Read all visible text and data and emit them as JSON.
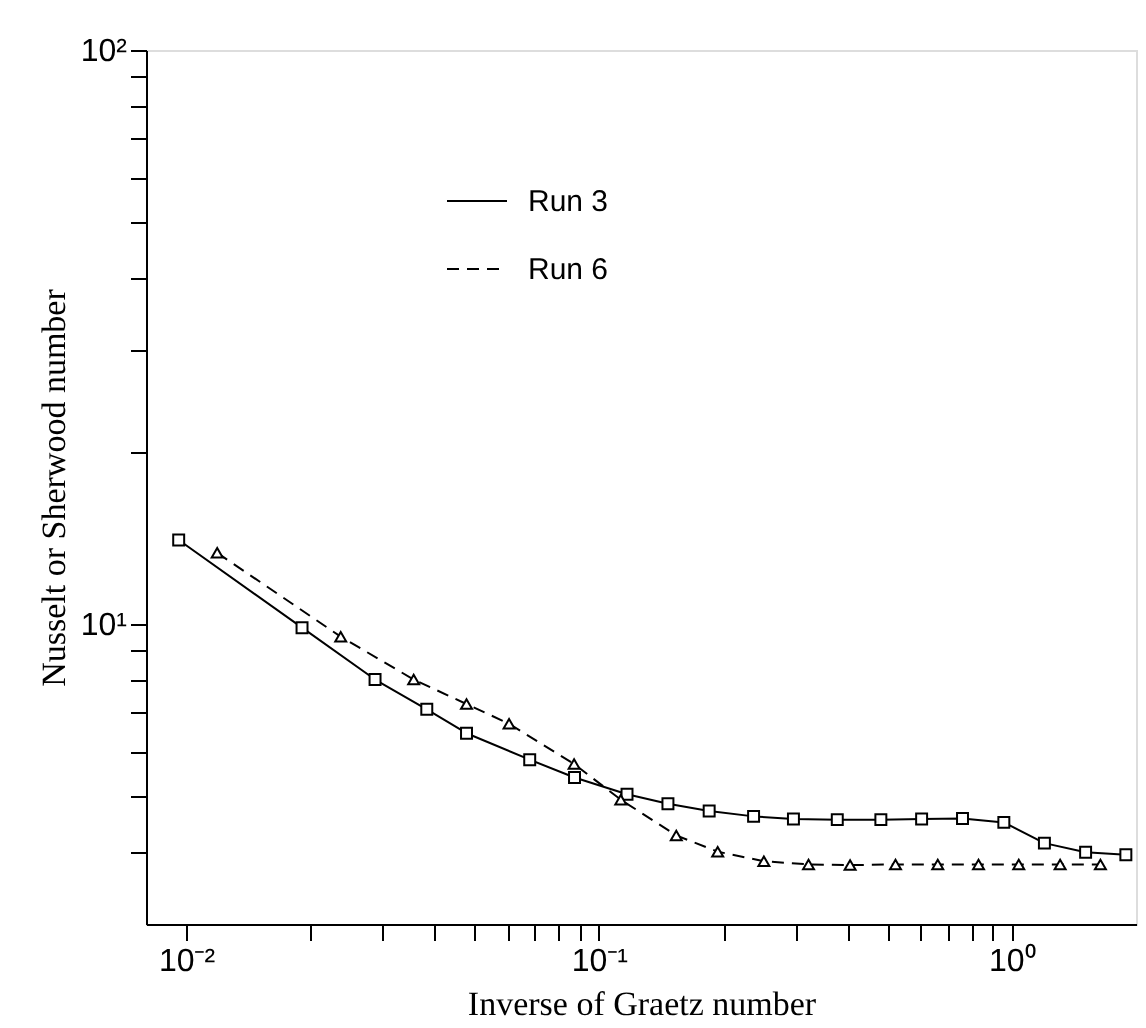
{
  "chart_data": {
    "type": "line",
    "xlabel": "Inverse of Graetz number",
    "ylabel": "Nusselt or Sherwood number",
    "log": "xy",
    "grid": false,
    "legend": "top",
    "xlim": [
      0.008,
      2
    ],
    "ylim": [
      3,
      100
    ],
    "xticks": [
      {
        "value": 0.01,
        "label": "10⁻²"
      },
      {
        "value": 0.02,
        "label": null
      },
      {
        "value": 0.03,
        "label": null
      },
      {
        "value": 0.04,
        "label": null
      },
      {
        "value": 0.05,
        "label": null
      },
      {
        "value": 0.06,
        "label": null
      },
      {
        "value": 0.07,
        "label": null
      },
      {
        "value": 0.08,
        "label": null
      },
      {
        "value": 0.09,
        "label": null
      },
      {
        "value": 0.1,
        "label": "10⁻¹"
      },
      {
        "value": 0.2,
        "label": null
      },
      {
        "value": 0.3,
        "label": null
      },
      {
        "value": 0.4,
        "label": null
      },
      {
        "value": 0.5,
        "label": null
      },
      {
        "value": 0.6,
        "label": null
      },
      {
        "value": 0.7,
        "label": null
      },
      {
        "value": 0.8,
        "label": null
      },
      {
        "value": 0.9,
        "label": null
      },
      {
        "value": 1,
        "label": "10⁰"
      }
    ],
    "yticks": [
      {
        "value": 4,
        "label": null
      },
      {
        "value": 5,
        "label": null
      },
      {
        "value": 6,
        "label": null
      },
      {
        "value": 7,
        "label": null
      },
      {
        "value": 8,
        "label": null
      },
      {
        "value": 9,
        "label": null
      },
      {
        "value": 10,
        "label": "10¹"
      },
      {
        "value": 20,
        "label": null
      },
      {
        "value": 30,
        "label": null
      },
      {
        "value": 40,
        "label": null
      },
      {
        "value": 50,
        "label": null
      },
      {
        "value": 60,
        "label": null
      },
      {
        "value": 70,
        "label": null
      },
      {
        "value": 80,
        "label": null
      },
      {
        "value": 90,
        "label": null
      },
      {
        "value": 100,
        "label": "10²"
      }
    ],
    "series": [
      {
        "name": "Run 3",
        "color": "#000000",
        "marker": "square",
        "line_style": "solid",
        "x": [
          0.0096,
          0.0191,
          0.0287,
          0.0383,
          0.0478,
          0.068,
          0.0873,
          0.117,
          0.147,
          0.185,
          0.237,
          0.296,
          0.378,
          0.482,
          0.605,
          0.76,
          0.957,
          1.2,
          1.51,
          1.89
        ],
        "values": [
          14.0,
          9.85,
          8.0,
          7.1,
          6.45,
          5.8,
          5.4,
          5.05,
          4.86,
          4.72,
          4.62,
          4.57,
          4.56,
          4.56,
          4.57,
          4.58,
          4.51,
          4.15,
          4.0,
          3.96
        ]
      },
      {
        "name": "Run 6",
        "color": "#000000",
        "marker": "triangle",
        "line_style": "dashed",
        "x": [
          0.0119,
          0.0237,
          0.0356,
          0.0478,
          0.0606,
          0.0871,
          0.113,
          0.154,
          0.194,
          0.251,
          0.322,
          0.406,
          0.523,
          0.662,
          0.831,
          1.04,
          1.31,
          1.64
        ],
        "values": [
          13.3,
          9.5,
          8.0,
          7.25,
          6.7,
          5.7,
          4.94,
          4.28,
          4.01,
          3.86,
          3.81,
          3.8,
          3.81,
          3.81,
          3.81,
          3.81,
          3.81,
          3.81
        ]
      }
    ]
  }
}
